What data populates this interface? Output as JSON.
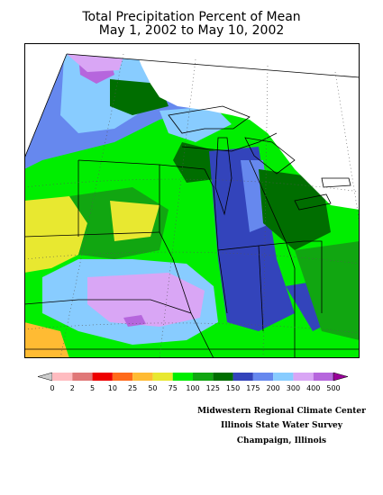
{
  "title": {
    "line1": "Total Precipitation Percent of Mean",
    "line2": "May 1, 2002 to May 10, 2002"
  },
  "legend": {
    "labels": [
      "0",
      "2",
      "5",
      "10",
      "25",
      "50",
      "75",
      "100",
      "125",
      "150",
      "175",
      "200",
      "300",
      "400",
      "500"
    ],
    "colors": [
      "#cccccc",
      "#ffbcc0",
      "#e07878",
      "#ee0000",
      "#ff6a1a",
      "#ffbb33",
      "#e8e830",
      "#00ee00",
      "#11a611",
      "#006e00",
      "#3344bb",
      "#6688ee",
      "#88ccff",
      "#d9a6f5",
      "#b666dd",
      "#990099"
    ]
  },
  "credits": {
    "line1": "Midwestern Regional Climate Center",
    "line2": "Illinois State Water Survey",
    "line3": "Champaign, Illinois"
  }
}
